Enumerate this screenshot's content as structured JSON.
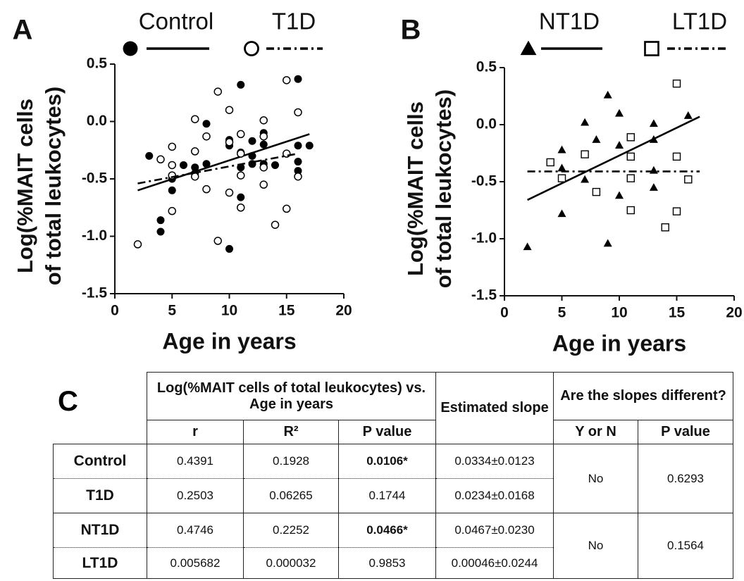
{
  "chart_data": [
    {
      "type": "scatter",
      "panel": "A",
      "xlabel": "Age in years",
      "ylabel": [
        "Log(%MAIT cells",
        "of total leukocytes)"
      ],
      "xlim": [
        0,
        20
      ],
      "xticks": [
        0,
        5,
        10,
        15,
        20
      ],
      "ylim": [
        -1.5,
        0.5
      ],
      "yticks": [
        0.5,
        {
          "value": 0,
          "label": "0.0"
        },
        -0.5,
        {
          "value": -1,
          "label": "-1.0"
        },
        -1.5
      ],
      "series": [
        {
          "name": "Control",
          "color": "#000000",
          "marker": "filled-circle",
          "line_style": "solid",
          "x": [
            3,
            4,
            4,
            5,
            5,
            6,
            7,
            7,
            8,
            8,
            10,
            10,
            10,
            11,
            11,
            11,
            11,
            12,
            12,
            12,
            13,
            13,
            13,
            13,
            14,
            16,
            16,
            16,
            16,
            17
          ],
          "values": [
            -0.3,
            -0.86,
            -0.96,
            -0.5,
            -0.6,
            -0.38,
            -0.4,
            -0.45,
            -0.02,
            -0.37,
            -0.16,
            -0.21,
            -1.11,
            0.32,
            -0.27,
            -0.4,
            -0.66,
            -0.17,
            -0.3,
            -0.37,
            -0.1,
            -0.13,
            -0.2,
            -0.37,
            -0.38,
            0.37,
            -0.21,
            -0.35,
            -0.43,
            -0.21
          ],
          "fit": {
            "x": [
              2,
              17
            ],
            "values": [
              -0.6,
              -0.11
            ]
          }
        },
        {
          "name": "T1D",
          "color": "#000000",
          "marker": "open-circle",
          "line_style": "dashdot",
          "x": [
            2,
            5,
            5,
            5,
            7,
            7,
            8,
            9,
            9,
            10,
            10,
            10,
            13,
            13,
            13,
            13,
            16,
            4,
            5,
            7,
            8,
            11,
            11,
            11,
            11,
            14,
            15,
            15,
            15,
            16
          ],
          "values": [
            -1.07,
            -0.22,
            -0.38,
            -0.78,
            0.02,
            -0.48,
            -0.13,
            0.26,
            -1.04,
            0.1,
            -0.18,
            -0.62,
            0.01,
            -0.13,
            -0.4,
            -0.55,
            0.08,
            -0.33,
            -0.47,
            -0.26,
            -0.59,
            -0.11,
            -0.28,
            -0.47,
            -0.75,
            -0.9,
            0.36,
            -0.28,
            -0.76,
            -0.48
          ],
          "fit": {
            "x": [
              2,
              16
            ],
            "values": [
              -0.54,
              -0.28
            ]
          }
        }
      ]
    },
    {
      "type": "scatter",
      "panel": "B",
      "xlabel": "Age in years",
      "ylabel": [
        "Log(%MAIT cells",
        "of total leukocytes)"
      ],
      "xlim": [
        0,
        20
      ],
      "xticks": [
        0,
        5,
        10,
        15,
        20
      ],
      "ylim": [
        -1.5,
        0.5
      ],
      "yticks": [
        0.5,
        {
          "value": 0,
          "label": "0.0"
        },
        -0.5,
        {
          "value": -1,
          "label": "-1.0"
        },
        -1.5
      ],
      "series": [
        {
          "name": "NT1D",
          "color": "#000000",
          "marker": "filled-triangle",
          "line_style": "solid",
          "x": [
            2,
            5,
            5,
            5,
            7,
            7,
            8,
            9,
            9,
            10,
            10,
            10,
            13,
            13,
            13,
            13,
            16
          ],
          "values": [
            -1.07,
            -0.22,
            -0.38,
            -0.78,
            0.02,
            -0.48,
            -0.13,
            0.26,
            -1.04,
            0.1,
            -0.18,
            -0.62,
            0.01,
            -0.13,
            -0.4,
            -0.55,
            0.08
          ],
          "fit": {
            "x": [
              2,
              17
            ],
            "values": [
              -0.66,
              0.07
            ]
          }
        },
        {
          "name": "LT1D",
          "color": "#000000",
          "marker": "open-square",
          "line_style": "dashdot",
          "x": [
            4,
            5,
            7,
            8,
            11,
            11,
            11,
            11,
            14,
            15,
            15,
            15,
            16
          ],
          "values": [
            -0.33,
            -0.47,
            -0.26,
            -0.59,
            -0.11,
            -0.28,
            -0.47,
            -0.75,
            -0.9,
            0.36,
            -0.28,
            -0.76,
            -0.48
          ],
          "fit": {
            "x": [
              2,
              17
            ],
            "values": [
              -0.41,
              -0.41
            ]
          }
        }
      ]
    }
  ],
  "table": {
    "panel": "C",
    "group_header": "Log(%MAIT cells of total leukocytes) vs. Age in years",
    "columns": [
      "r",
      "R²",
      "P value"
    ],
    "slope_header": "Estimated slope",
    "compare_header": "Are the slopes different?",
    "compare_columns": [
      "Y or N",
      "P value"
    ],
    "rows": [
      [
        "Control",
        "0.4391",
        "0.1928",
        "0.0106*",
        "0.0334±0.0123"
      ],
      [
        "T1D",
        "0.2503",
        "0.06265",
        "0.1744",
        "0.0234±0.0168"
      ],
      [
        "NT1D",
        "0.4746",
        "0.2252",
        "0.0466*",
        "0.0467±0.0230"
      ],
      [
        "LT1D",
        "0.005682",
        "0.000032",
        "0.9853",
        "0.00046±0.0244"
      ]
    ],
    "comparisons": [
      [
        "No",
        "0.6293"
      ],
      [
        "No",
        "0.1564"
      ]
    ]
  }
}
